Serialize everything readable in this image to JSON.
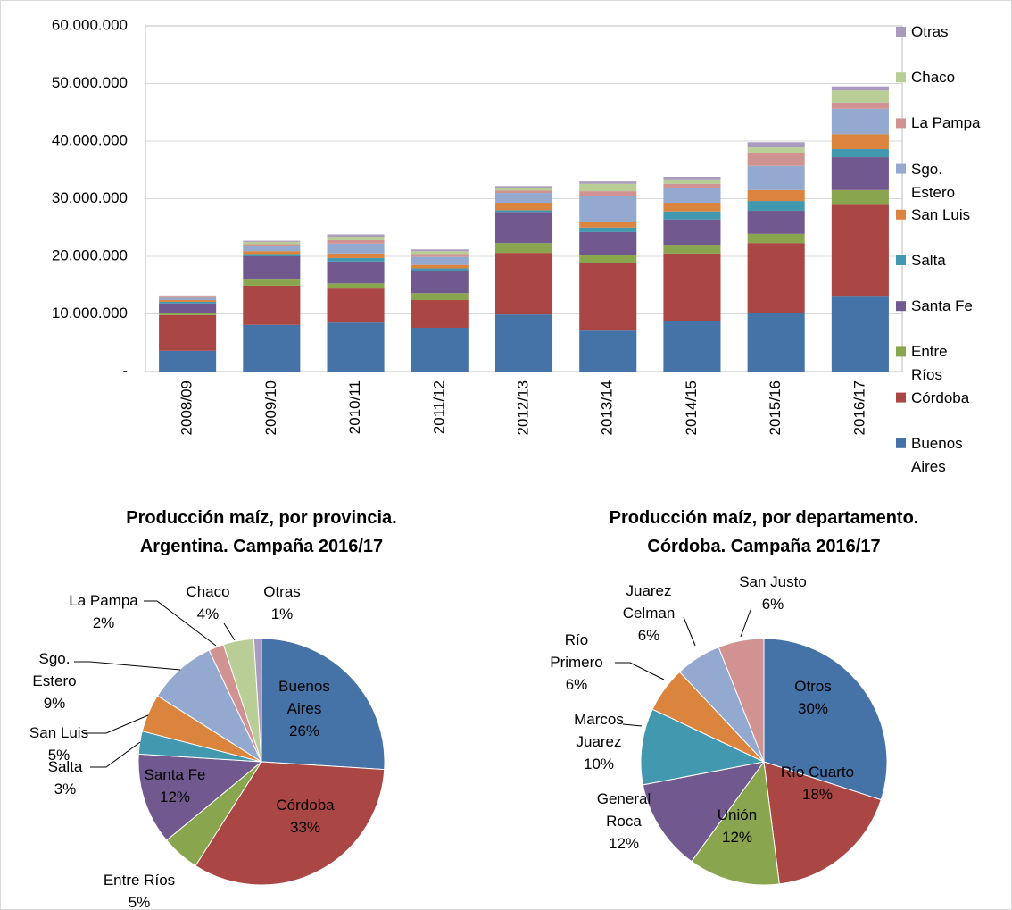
{
  "chart_data": [
    {
      "type": "stacked_bar",
      "categories": [
        "2008/09",
        "2009/10",
        "2010/11",
        "2011/12",
        "2012/13",
        "2013/14",
        "2014/15",
        "2015/16",
        "2016/17"
      ],
      "series": [
        {
          "name": "Buenos Aires",
          "color": "#4572a7",
          "values": [
            3600000,
            8100000,
            8500000,
            7600000,
            9900000,
            7100000,
            8800000,
            10200000,
            13000000
          ]
        },
        {
          "name": "Córdoba",
          "color": "#aa4643",
          "values": [
            6200000,
            6800000,
            5900000,
            4800000,
            10700000,
            11800000,
            11700000,
            12100000,
            16100000
          ]
        },
        {
          "name": "Entre Ríos",
          "color": "#89a54e",
          "values": [
            400000,
            1200000,
            900000,
            1200000,
            1700000,
            1400000,
            1500000,
            1600000,
            2400000
          ]
        },
        {
          "name": "Santa Fe",
          "color": "#71588f",
          "values": [
            1600000,
            3900000,
            3800000,
            3800000,
            5400000,
            3900000,
            4400000,
            4000000,
            5700000
          ]
        },
        {
          "name": "Salta",
          "color": "#4198af",
          "values": [
            300000,
            400000,
            600000,
            500000,
            300000,
            800000,
            1400000,
            1700000,
            1400000
          ]
        },
        {
          "name": "San Luis",
          "color": "#db843d",
          "values": [
            300000,
            500000,
            800000,
            600000,
            1300000,
            900000,
            1500000,
            1900000,
            2600000
          ]
        },
        {
          "name": "Sgo. Estero",
          "color": "#93a9cf",
          "values": [
            400000,
            800000,
            1700000,
            1400000,
            1700000,
            4600000,
            2500000,
            4200000,
            4400000
          ]
        },
        {
          "name": "La Pampa",
          "color": "#d19392",
          "values": [
            200000,
            400000,
            600000,
            500000,
            400000,
            800000,
            800000,
            2300000,
            1100000
          ]
        },
        {
          "name": "Chaco",
          "color": "#b9cd96",
          "values": [
            100000,
            400000,
            600000,
            500000,
            500000,
            1300000,
            600000,
            900000,
            2100000
          ]
        },
        {
          "name": "Otras",
          "color": "#a99bbd",
          "values": [
            100000,
            200000,
            400000,
            300000,
            300000,
            400000,
            600000,
            900000,
            700000
          ]
        }
      ],
      "ylim": [
        0,
        60000000
      ],
      "yticks": [
        {
          "value": 0,
          "label": "-"
        },
        {
          "value": 10000000,
          "label": "10.000.000"
        },
        {
          "value": 20000000,
          "label": "20.000.000"
        },
        {
          "value": 30000000,
          "label": "30.000.000"
        },
        {
          "value": 40000000,
          "label": "40.000.000"
        },
        {
          "value": 50000000,
          "label": "50.000.000"
        },
        {
          "value": 60000000,
          "label": "60.000.000"
        }
      ],
      "grid": true,
      "legend": "right"
    },
    {
      "type": "pie",
      "title": "Producción maíz, por provincia. Argentina. Campaña 2016/17",
      "categories": [
        "Buenos Aires",
        "Córdoba",
        "Entre Ríos",
        "Santa Fe",
        "Salta",
        "San Luis",
        "Sgo. Estero",
        "La Pampa",
        "Chaco",
        "Otras"
      ],
      "values": [
        26,
        33,
        5,
        12,
        3,
        5,
        9,
        2,
        4,
        1
      ],
      "value_labels": [
        "26%",
        "33%",
        "5%",
        "12%",
        "3%",
        "5%",
        "9%",
        "2%",
        "4%",
        "1%"
      ],
      "colors": [
        "#4572a7",
        "#aa4643",
        "#89a54e",
        "#71588f",
        "#4198af",
        "#db843d",
        "#93a9cf",
        "#d19392",
        "#b9cd96",
        "#a99bbd"
      ]
    },
    {
      "type": "pie",
      "title": "Producción maíz, por departamento. Córdoba. Campaña 2016/17",
      "categories": [
        "Otros",
        "Río Cuarto",
        "Unión",
        "General Roca",
        "Marcos Juarez",
        "Río Primero",
        "Juarez Celman",
        "San Justo"
      ],
      "values": [
        30,
        18,
        12,
        12,
        10,
        6,
        6,
        6
      ],
      "value_labels": [
        "30%",
        "18%",
        "12%",
        "12%",
        "10%",
        "6%",
        "6%",
        "6%"
      ],
      "colors": [
        "#4572a7",
        "#aa4643",
        "#89a54e",
        "#71588f",
        "#4198af",
        "#db843d",
        "#93a9cf",
        "#d19392"
      ]
    }
  ]
}
